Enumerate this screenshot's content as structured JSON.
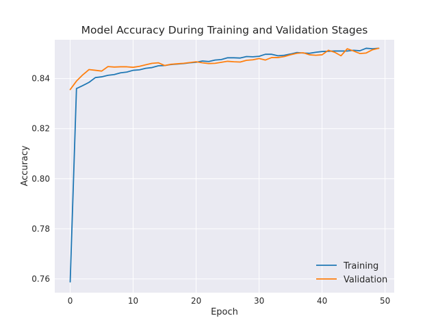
{
  "chart_data": {
    "type": "line",
    "title": "Model Accuracy During Training and Validation Stages",
    "xlabel": "Epoch",
    "ylabel": "Accuracy",
    "xlim": [
      -2.45,
      51.45
    ],
    "ylim": [
      0.7545,
      0.8555
    ],
    "xticks": [
      0,
      10,
      20,
      30,
      40,
      50
    ],
    "xtick_labels": [
      "0",
      "10",
      "20",
      "30",
      "40",
      "50"
    ],
    "yticks": [
      0.76,
      0.78,
      0.8,
      0.82,
      0.84
    ],
    "ytick_labels": [
      "0.76",
      "0.78",
      "0.80",
      "0.82",
      "0.84"
    ],
    "grid": true,
    "legend_position": "lower-right",
    "x": [
      0,
      1,
      2,
      3,
      4,
      5,
      6,
      7,
      8,
      9,
      10,
      11,
      12,
      13,
      14,
      15,
      16,
      17,
      18,
      19,
      20,
      21,
      22,
      23,
      24,
      25,
      26,
      27,
      28,
      29,
      30,
      31,
      32,
      33,
      34,
      35,
      36,
      37,
      38,
      39,
      40,
      41,
      42,
      43,
      44,
      45,
      46,
      47,
      48,
      49
    ],
    "series": [
      {
        "name": "Training",
        "color": "#1f77b4",
        "values": [
          0.7588,
          0.836,
          0.8372,
          0.8385,
          0.8404,
          0.8407,
          0.8413,
          0.8416,
          0.8423,
          0.8426,
          0.8433,
          0.8435,
          0.8441,
          0.8444,
          0.8451,
          0.8452,
          0.8456,
          0.8458,
          0.846,
          0.8463,
          0.8465,
          0.847,
          0.8468,
          0.8474,
          0.8476,
          0.8483,
          0.8483,
          0.8482,
          0.8488,
          0.8487,
          0.8489,
          0.8497,
          0.8497,
          0.8491,
          0.8493,
          0.8498,
          0.8504,
          0.8502,
          0.8501,
          0.8505,
          0.8508,
          0.8509,
          0.851,
          0.851,
          0.851,
          0.8513,
          0.8511,
          0.8521,
          0.8519,
          0.8521
        ]
      },
      {
        "name": "Validation",
        "color": "#ff7f0e",
        "values": [
          0.8356,
          0.839,
          0.8415,
          0.8436,
          0.8433,
          0.843,
          0.8448,
          0.8446,
          0.8447,
          0.8447,
          0.8445,
          0.8449,
          0.8455,
          0.8461,
          0.8463,
          0.8452,
          0.8457,
          0.8459,
          0.8461,
          0.8464,
          0.8467,
          0.8463,
          0.846,
          0.8461,
          0.8465,
          0.8469,
          0.8467,
          0.8466,
          0.8473,
          0.8475,
          0.848,
          0.8474,
          0.8484,
          0.8484,
          0.8488,
          0.8495,
          0.8501,
          0.8503,
          0.8495,
          0.8493,
          0.8495,
          0.8513,
          0.8505,
          0.8491,
          0.8519,
          0.851,
          0.85,
          0.8502,
          0.8515,
          0.8521
        ]
      }
    ]
  }
}
